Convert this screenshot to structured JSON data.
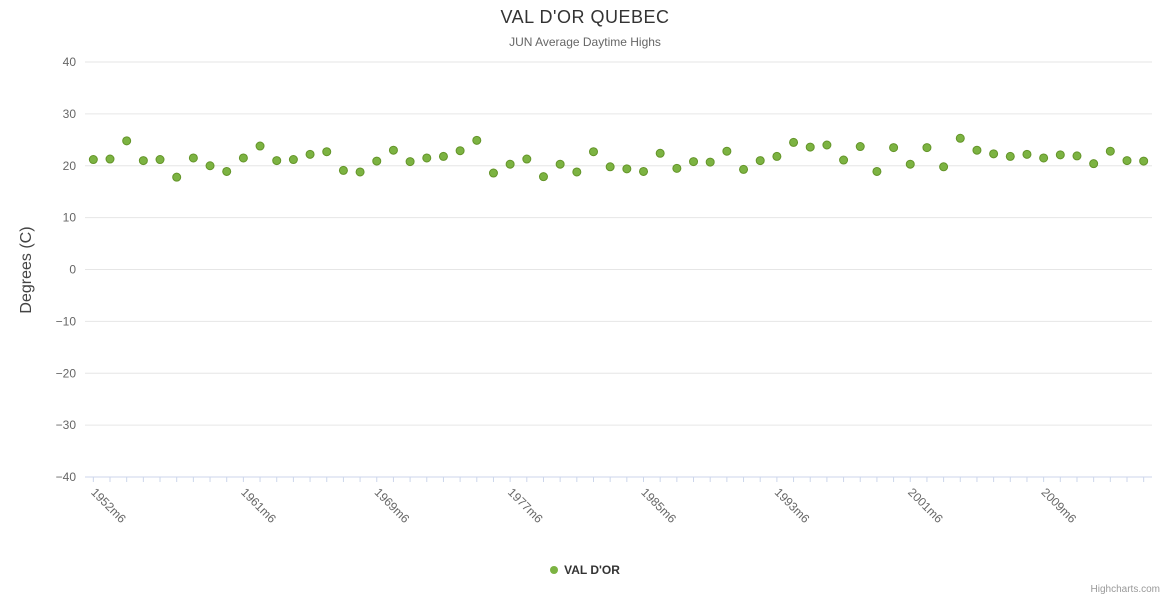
{
  "header": {
    "title": "VAL D'OR QUEBEC",
    "subtitle": "JUN Average Daytime Highs"
  },
  "legend": {
    "label": "VAL D'OR"
  },
  "credits": {
    "label": "Highcharts.com"
  },
  "colors": {
    "point_fill": "#7cb342",
    "point_stroke": "#639428",
    "grid": "#e6e6e6",
    "axis_line": "#ccd6eb",
    "tick": "#ccd6eb",
    "axis_label": "#666666",
    "title": "#333333"
  },
  "chart_data": {
    "type": "scatter",
    "title": "VAL D'OR QUEBEC",
    "subtitle": "JUN Average Daytime Highs",
    "xlabel": "",
    "ylabel": "Degrees (C)",
    "ylim": [
      -40,
      40
    ],
    "ytick_interval": 10,
    "grid": true,
    "legend_position": "bottom",
    "xtick_labels": [
      "1952m6",
      "1961m6",
      "1969m6",
      "1977m6",
      "1985m6",
      "1993m6",
      "2001m6",
      "2009m6"
    ],
    "series": [
      {
        "name": "VAL D'OR",
        "x": [
          1952,
          1953,
          1954,
          1955,
          1956,
          1957,
          1958,
          1959,
          1960,
          1961,
          1962,
          1963,
          1964,
          1965,
          1966,
          1967,
          1968,
          1969,
          1970,
          1971,
          1972,
          1973,
          1974,
          1975,
          1976,
          1977,
          1978,
          1979,
          1980,
          1981,
          1982,
          1983,
          1984,
          1985,
          1986,
          1987,
          1988,
          1989,
          1990,
          1991,
          1992,
          1993,
          1994,
          1995,
          1996,
          1997,
          1998,
          1999,
          2000,
          2001,
          2002,
          2003,
          2004,
          2005,
          2006,
          2007,
          2008,
          2009,
          2010,
          2011,
          2012,
          2013,
          2014,
          2015
        ],
        "values": [
          21.2,
          21.3,
          24.8,
          21.0,
          21.2,
          17.8,
          21.5,
          20.0,
          18.9,
          21.5,
          23.8,
          21.0,
          21.2,
          22.2,
          22.7,
          19.1,
          18.8,
          20.9,
          23.0,
          20.8,
          21.5,
          21.8,
          22.9,
          24.9,
          18.6,
          20.3,
          21.3,
          17.9,
          20.3,
          18.8,
          22.7,
          19.8,
          19.4,
          18.9,
          22.4,
          19.5,
          20.8,
          20.7,
          22.8,
          19.3,
          21.0,
          21.8,
          24.5,
          23.6,
          24.0,
          21.1,
          23.7,
          18.9,
          23.5,
          20.3,
          23.5,
          19.8,
          25.3,
          23.0,
          22.3,
          21.8,
          22.2,
          21.5,
          22.1,
          21.9,
          20.4,
          22.8,
          21.0,
          20.9
        ]
      }
    ]
  }
}
